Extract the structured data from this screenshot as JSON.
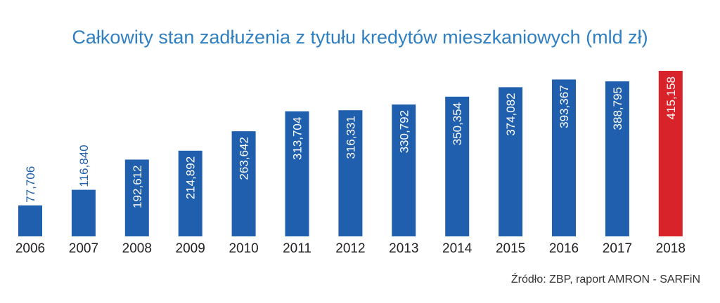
{
  "title": "Całkowity stan zadłużenia z tytułu kredytów mieszkaniowych (mld zł)",
  "source": "Źródło: ZBP, raport AMRON - SARFiN",
  "colors": {
    "bar": "#1f5fae",
    "highlight": "#d9232a",
    "title": "#2f7fc3"
  },
  "chart_data": {
    "type": "bar",
    "title": "Całkowity stan zadłużenia z tytułu kredytów mieszkaniowych (mld zł)",
    "xlabel": "",
    "ylabel": "",
    "categories": [
      "2006",
      "2007",
      "2008",
      "2009",
      "2010",
      "2011",
      "2012",
      "2013",
      "2014",
      "2015",
      "2016",
      "2017",
      "2018"
    ],
    "values": [
      77706,
      116840,
      192612,
      214892,
      263642,
      313704,
      316331,
      330792,
      350354,
      374082,
      393367,
      388795,
      415158
    ],
    "data_labels": [
      "77,706",
      "116,840",
      "192,612",
      "214,892",
      "263,642",
      "313,704",
      "316,331",
      "330,792",
      "350,354",
      "374,082",
      "393,367",
      "388,795",
      "415,158"
    ],
    "highlight_category": "2018",
    "ylim": [
      0,
      415158
    ],
    "grid": false,
    "legend": "none"
  }
}
